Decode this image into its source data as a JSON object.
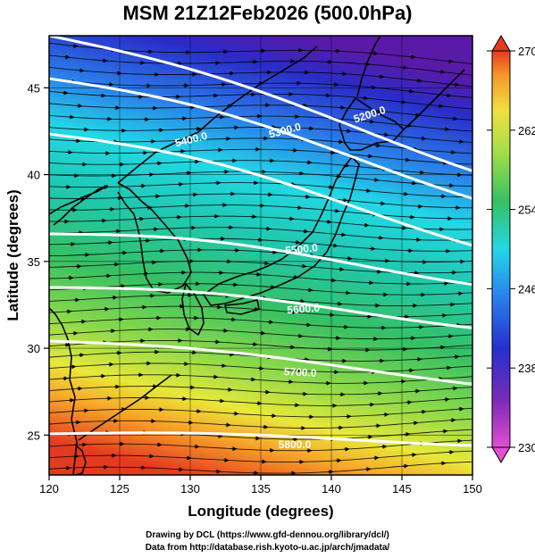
{
  "title": "MSM 21Z12Feb2026 (500.0hPa)",
  "xlabel": "Longitude (degrees)",
  "ylabel": "Latitude  (degrees)",
  "x_ticks": [
    "120",
    "125",
    "130",
    "135",
    "140",
    "145",
    "150"
  ],
  "y_ticks": [
    "25",
    "30",
    "35",
    "40",
    "45"
  ],
  "colorbar": {
    "ticks": [
      "270",
      "262",
      "254",
      "246",
      "238",
      "230"
    ],
    "min": 230,
    "max": 270
  },
  "contours": [
    {
      "label": "5200.0",
      "level": 5200
    },
    {
      "label": "5300.0",
      "level": 5300
    },
    {
      "label": "5400.0",
      "level": 5400
    },
    {
      "label": "5500.0",
      "level": 5500
    },
    {
      "label": "5600.0",
      "level": 5600
    },
    {
      "label": "5700.0",
      "level": 5700
    },
    {
      "label": "5800.0",
      "level": 5800
    }
  ],
  "footer": {
    "line1": "Drawing by DCL (https://www.gfd-dennou.org/library/dcl/)",
    "line2": "Data from http://database.rish.kyoto-u.ac.jp/arch/jmadata/"
  },
  "colors": {
    "warm": "#e03020",
    "cold": "#4020c0",
    "contour": "#ffffff",
    "vector": "#000000"
  }
}
